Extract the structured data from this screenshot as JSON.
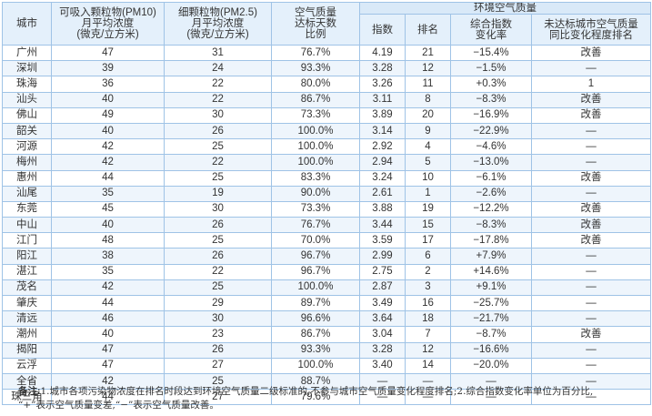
{
  "headers": {
    "city": "城市",
    "pm10": "可吸入颗粒物(PM10)\n月平均浓度\n(微克/立方米)",
    "pm25": "细颗粒物(PM2.5)\n月平均浓度\n(微克/立方米)",
    "ratio": "空气质量\n达标天数\n比例",
    "env_group": "环境空气质量",
    "index": "指数",
    "rank": "排名",
    "change": "综合指数\n变化率",
    "improve": "未达标城市空气质量\n同比变化程度排名"
  },
  "rows": [
    {
      "city": "广州",
      "pm10": "47",
      "pm25": "31",
      "ratio": "76.7%",
      "index": "4.19",
      "rank": "21",
      "change": "−15.4%",
      "improve": "改善"
    },
    {
      "city": "深圳",
      "pm10": "39",
      "pm25": "24",
      "ratio": "93.3%",
      "index": "3.28",
      "rank": "12",
      "change": "−1.5%",
      "improve": "—"
    },
    {
      "city": "珠海",
      "pm10": "36",
      "pm25": "22",
      "ratio": "80.0%",
      "index": "3.26",
      "rank": "11",
      "change": "+0.3%",
      "improve": "1"
    },
    {
      "city": "汕头",
      "pm10": "40",
      "pm25": "22",
      "ratio": "86.7%",
      "index": "3.11",
      "rank": "8",
      "change": "−8.3%",
      "improve": "改善"
    },
    {
      "city": "佛山",
      "pm10": "49",
      "pm25": "30",
      "ratio": "73.3%",
      "index": "3.89",
      "rank": "20",
      "change": "−16.9%",
      "improve": "改善"
    },
    {
      "city": "韶关",
      "pm10": "40",
      "pm25": "26",
      "ratio": "100.0%",
      "index": "3.14",
      "rank": "9",
      "change": "−22.9%",
      "improve": "—"
    },
    {
      "city": "河源",
      "pm10": "42",
      "pm25": "25",
      "ratio": "100.0%",
      "index": "2.92",
      "rank": "4",
      "change": "−4.6%",
      "improve": "—"
    },
    {
      "city": "梅州",
      "pm10": "42",
      "pm25": "22",
      "ratio": "100.0%",
      "index": "2.94",
      "rank": "5",
      "change": "−13.0%",
      "improve": "—"
    },
    {
      "city": "惠州",
      "pm10": "44",
      "pm25": "25",
      "ratio": "83.3%",
      "index": "3.24",
      "rank": "10",
      "change": "−6.1%",
      "improve": "改善"
    },
    {
      "city": "汕尾",
      "pm10": "35",
      "pm25": "19",
      "ratio": "90.0%",
      "index": "2.61",
      "rank": "1",
      "change": "−2.6%",
      "improve": "—"
    },
    {
      "city": "东莞",
      "pm10": "45",
      "pm25": "30",
      "ratio": "73.3%",
      "index": "3.88",
      "rank": "19",
      "change": "−12.2%",
      "improve": "改善"
    },
    {
      "city": "中山",
      "pm10": "40",
      "pm25": "26",
      "ratio": "76.7%",
      "index": "3.44",
      "rank": "15",
      "change": "−8.3%",
      "improve": "改善"
    },
    {
      "city": "江门",
      "pm10": "48",
      "pm25": "25",
      "ratio": "70.0%",
      "index": "3.59",
      "rank": "17",
      "change": "−17.8%",
      "improve": "改善"
    },
    {
      "city": "阳江",
      "pm10": "38",
      "pm25": "26",
      "ratio": "96.7%",
      "index": "2.99",
      "rank": "6",
      "change": "+7.9%",
      "improve": "—"
    },
    {
      "city": "湛江",
      "pm10": "35",
      "pm25": "22",
      "ratio": "96.7%",
      "index": "2.75",
      "rank": "2",
      "change": "+14.6%",
      "improve": "—"
    },
    {
      "city": "茂名",
      "pm10": "42",
      "pm25": "25",
      "ratio": "100.0%",
      "index": "2.87",
      "rank": "3",
      "change": "+9.1%",
      "improve": "—"
    },
    {
      "city": "肇庆",
      "pm10": "44",
      "pm25": "29",
      "ratio": "89.7%",
      "index": "3.49",
      "rank": "16",
      "change": "−25.7%",
      "improve": "—"
    },
    {
      "city": "清远",
      "pm10": "46",
      "pm25": "30",
      "ratio": "96.6%",
      "index": "3.64",
      "rank": "18",
      "change": "−21.7%",
      "improve": "—"
    },
    {
      "city": "潮州",
      "pm10": "40",
      "pm25": "23",
      "ratio": "86.7%",
      "index": "3.04",
      "rank": "7",
      "change": "−8.7%",
      "improve": "改善"
    },
    {
      "city": "揭阳",
      "pm10": "47",
      "pm25": "26",
      "ratio": "93.3%",
      "index": "3.28",
      "rank": "12",
      "change": "−16.6%",
      "improve": "—"
    },
    {
      "city": "云浮",
      "pm10": "47",
      "pm25": "27",
      "ratio": "100.0%",
      "index": "3.40",
      "rank": "14",
      "change": "−20.0%",
      "improve": "—"
    },
    {
      "city": "全省",
      "pm10": "42",
      "pm25": "25",
      "ratio": "88.7%",
      "index": "—",
      "rank": "—",
      "change": "—",
      "improve": "—"
    },
    {
      "city": "珠三角",
      "pm10": "44",
      "pm25": "27",
      "ratio": "79.6%",
      "index": "—",
      "rank": "—",
      "change": "—",
      "improve": "—"
    }
  ],
  "note": {
    "label": "备注:",
    "line1": "1.城市各项污染物浓度在排名时段达到环境空气质量二级标准的,不参与城市空气质量变化程度排名;2.综合指数变化率单位为百分比,",
    "line2": "“+”表示空气质量变差,“−”表示空气质量改善。"
  }
}
